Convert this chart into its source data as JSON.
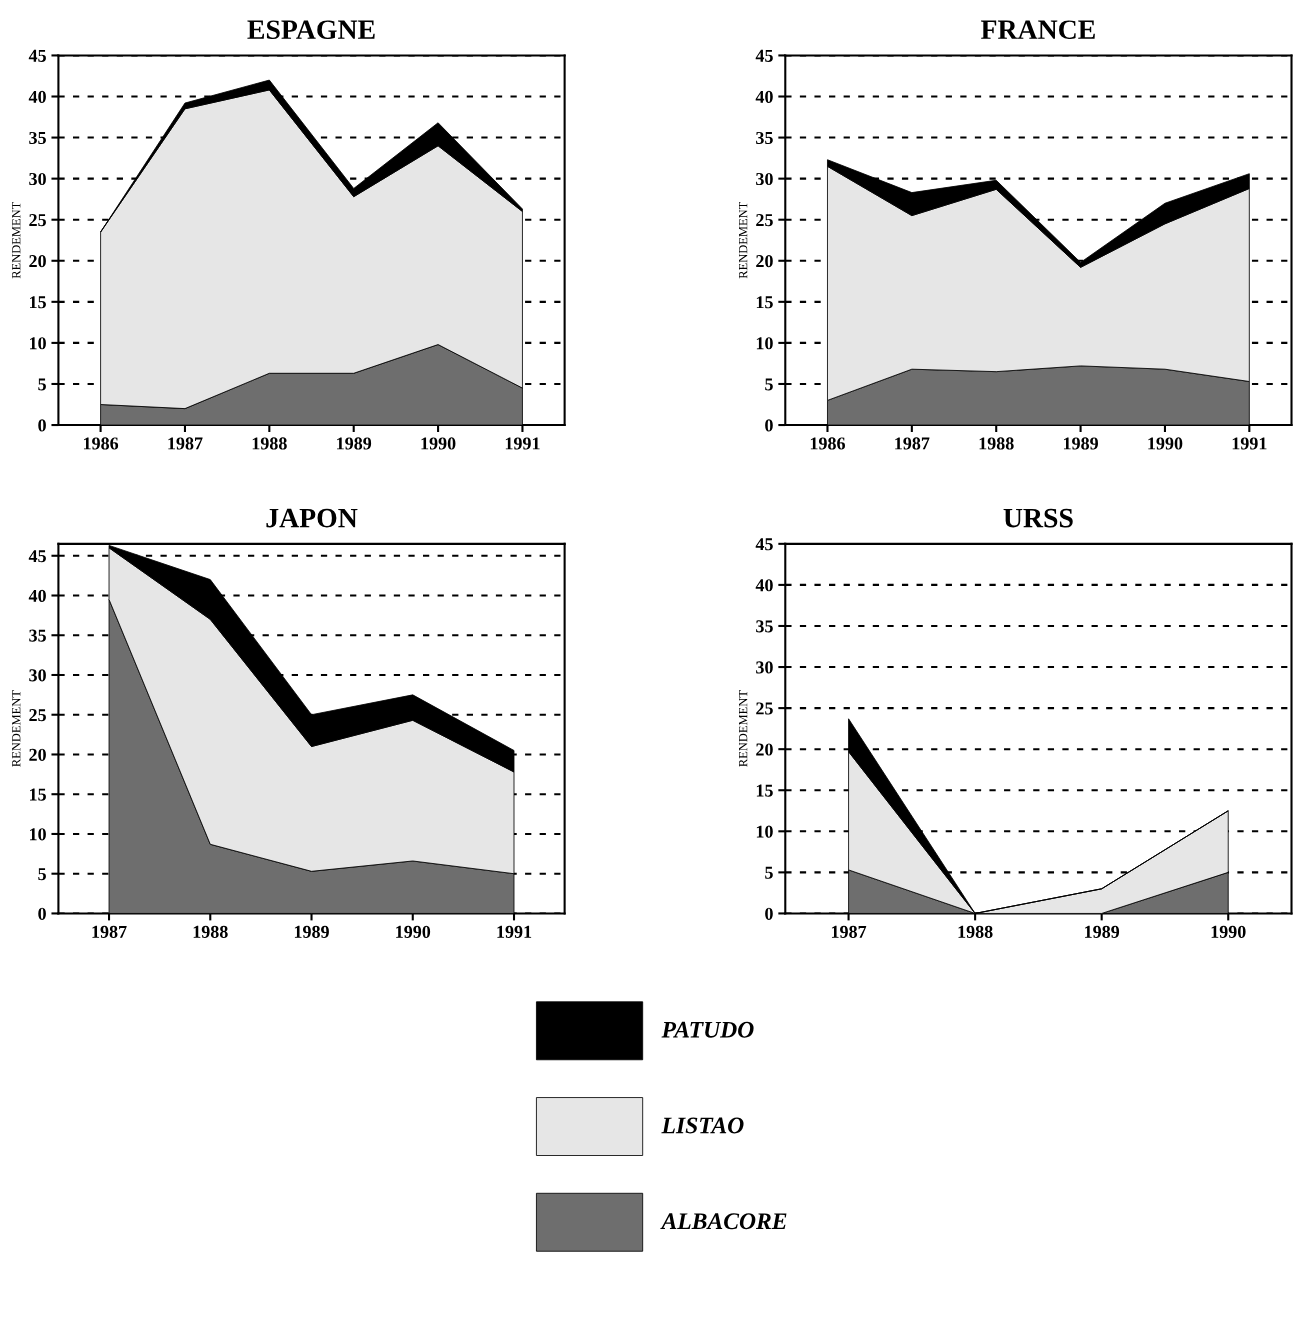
{
  "chart_data": [
    {
      "type": "area",
      "title": "ESPAGNE",
      "ylabel": "RENDEMENT",
      "stacked": true,
      "x": [
        1986,
        1987,
        1988,
        1989,
        1990,
        1991
      ],
      "xlim": [
        1985.5,
        1991.5
      ],
      "xticks": [
        1986,
        1987,
        1988,
        1989,
        1990,
        1991
      ],
      "ylim": [
        0,
        45
      ],
      "yticks": [
        0,
        5,
        10,
        15,
        20,
        25,
        30,
        35,
        40,
        45
      ],
      "grid": "y",
      "legend": "bottom",
      "series": [
        {
          "name": "ALBACORE",
          "color": "#6e6e6e",
          "values": [
            2.5,
            2,
            6.3,
            6.3,
            9.8,
            4.5
          ]
        },
        {
          "name": "LISTAO",
          "color": "#e6e6e6",
          "values": [
            21,
            36.5,
            34.5,
            21.5,
            24.2,
            21.5
          ]
        },
        {
          "name": "PATUDO",
          "color": "#000000",
          "values": [
            0,
            0.7,
            1.2,
            1,
            2.8,
            0.3
          ]
        }
      ]
    },
    {
      "type": "area",
      "title": "FRANCE",
      "ylabel": "RENDEMENT",
      "stacked": true,
      "x": [
        1986,
        1987,
        1988,
        1989,
        1990,
        1991
      ],
      "xlim": [
        1985.5,
        1991.5
      ],
      "xticks": [
        1986,
        1987,
        1988,
        1989,
        1990,
        1991
      ],
      "ylim": [
        0,
        45
      ],
      "yticks": [
        0,
        5,
        10,
        15,
        20,
        25,
        30,
        35,
        40,
        45
      ],
      "grid": "y",
      "series": [
        {
          "color": "#6e6e6e",
          "values": [
            3,
            6.8,
            6.5,
            7.2,
            6.8,
            5.3
          ]
        },
        {
          "color": "#e6e6e6",
          "values": [
            28.5,
            18.7,
            22.2,
            12,
            17.7,
            23.5
          ]
        },
        {
          "color": "#000000",
          "values": [
            0.8,
            2.8,
            1.1,
            0.6,
            2.5,
            1.8
          ]
        }
      ]
    },
    {
      "type": "area",
      "title": "JAPON",
      "ylabel": "RENDEMENT",
      "stacked": true,
      "x": [
        1987,
        1988,
        1989,
        1990,
        1991
      ],
      "xlim": [
        1986.5,
        1991.5
      ],
      "xticks": [
        1987,
        1988,
        1989,
        1990,
        1991
      ],
      "ylim": [
        0,
        46.5
      ],
      "yticks": [
        0,
        5,
        10,
        15,
        20,
        25,
        30,
        35,
        40,
        45
      ],
      "grid": "y",
      "series": [
        {
          "color": "#6e6e6e",
          "values": [
            39.5,
            8.7,
            5.3,
            6.6,
            5
          ]
        },
        {
          "color": "#e6e6e6",
          "values": [
            6.5,
            28.3,
            15.7,
            17.7,
            12.8
          ]
        },
        {
          "color": "#000000",
          "values": [
            0.3,
            5,
            4,
            3.2,
            2.7
          ]
        }
      ]
    },
    {
      "type": "area",
      "title": "URSS",
      "ylabel": "RENDEMENT",
      "stacked": true,
      "x": [
        1987,
        1988,
        1989,
        1990
      ],
      "xlim": [
        1986.5,
        1990.5
      ],
      "xticks": [
        1987,
        1988,
        1989,
        1990
      ],
      "ylim": [
        0,
        45
      ],
      "yticks": [
        0,
        5,
        10,
        15,
        20,
        25,
        30,
        35,
        40,
        45
      ],
      "grid": "y",
      "series": [
        {
          "color": "#6e6e6e",
          "values": [
            5.3,
            0,
            0,
            5
          ]
        },
        {
          "color": "#e6e6e6",
          "values": [
            14.4,
            0,
            3,
            7.5
          ]
        },
        {
          "color": "#000000",
          "values": [
            4,
            0,
            0,
            0
          ]
        }
      ]
    }
  ]
}
